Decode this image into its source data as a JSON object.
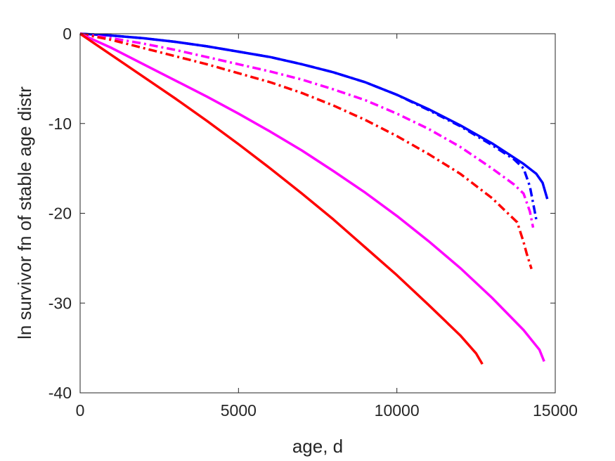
{
  "chart_data": {
    "type": "line",
    "xlabel": "age, d",
    "ylabel": "ln survivor fn of stable age distr",
    "xlim": [
      0,
      15000
    ],
    "ylim": [
      -40,
      0
    ],
    "xticks": [
      0,
      5000,
      10000,
      15000
    ],
    "xtick_labels": [
      "0",
      "5000",
      "10000",
      "15000"
    ],
    "yticks": [
      0,
      -10,
      -20,
      -30,
      -40
    ],
    "ytick_labels": [
      "0",
      "-10",
      "-20",
      "-30",
      "-40"
    ],
    "grid": false,
    "legend": "none",
    "series": [
      {
        "color": "#0000ff",
        "style": "solid",
        "points": [
          [
            0,
            0
          ],
          [
            1000,
            -0.2
          ],
          [
            2000,
            -0.5
          ],
          [
            3000,
            -0.9
          ],
          [
            4000,
            -1.4
          ],
          [
            5000,
            -2.0
          ],
          [
            6000,
            -2.6
          ],
          [
            7000,
            -3.4
          ],
          [
            8000,
            -4.3
          ],
          [
            9000,
            -5.4
          ],
          [
            10000,
            -6.8
          ],
          [
            11000,
            -8.4
          ],
          [
            12000,
            -10.2
          ],
          [
            13000,
            -12.2
          ],
          [
            14000,
            -14.5
          ],
          [
            14400,
            -15.6
          ],
          [
            14600,
            -16.6
          ],
          [
            14750,
            -18.4
          ]
        ]
      },
      {
        "color": "#0000ff",
        "style": "dashdot",
        "points": [
          [
            0,
            0
          ],
          [
            1000,
            -0.2
          ],
          [
            2000,
            -0.5
          ],
          [
            3000,
            -0.9
          ],
          [
            4000,
            -1.4
          ],
          [
            5000,
            -2.0
          ],
          [
            6000,
            -2.6
          ],
          [
            7000,
            -3.4
          ],
          [
            8000,
            -4.3
          ],
          [
            9000,
            -5.4
          ],
          [
            10000,
            -6.8
          ],
          [
            11000,
            -8.5
          ],
          [
            12000,
            -10.3
          ],
          [
            13000,
            -12.4
          ],
          [
            13700,
            -14.0
          ],
          [
            14000,
            -15.0
          ],
          [
            14200,
            -17.0
          ],
          [
            14400,
            -20.7
          ]
        ]
      },
      {
        "color": "#ff00ff",
        "style": "dashdot",
        "points": [
          [
            0,
            0
          ],
          [
            1000,
            -0.5
          ],
          [
            2000,
            -1.1
          ],
          [
            3000,
            -1.8
          ],
          [
            4000,
            -2.6
          ],
          [
            5000,
            -3.4
          ],
          [
            6000,
            -4.2
          ],
          [
            7000,
            -5.1
          ],
          [
            8000,
            -6.2
          ],
          [
            9000,
            -7.4
          ],
          [
            10000,
            -8.9
          ],
          [
            11000,
            -10.6
          ],
          [
            12000,
            -12.6
          ],
          [
            13000,
            -15.0
          ],
          [
            13700,
            -16.8
          ],
          [
            14000,
            -17.8
          ],
          [
            14200,
            -19.8
          ],
          [
            14300,
            -21.6
          ]
        ]
      },
      {
        "color": "#ff0000",
        "style": "dashdot",
        "points": [
          [
            0,
            0
          ],
          [
            1000,
            -0.7
          ],
          [
            2000,
            -1.6
          ],
          [
            3000,
            -2.5
          ],
          [
            4000,
            -3.4
          ],
          [
            5000,
            -4.4
          ],
          [
            6000,
            -5.4
          ],
          [
            7000,
            -6.6
          ],
          [
            8000,
            -8.0
          ],
          [
            9000,
            -9.6
          ],
          [
            10000,
            -11.4
          ],
          [
            11000,
            -13.4
          ],
          [
            12000,
            -15.6
          ],
          [
            13000,
            -18.3
          ],
          [
            13800,
            -21.0
          ],
          [
            14000,
            -23.2
          ],
          [
            14100,
            -24.5
          ],
          [
            14250,
            -26.2
          ]
        ]
      },
      {
        "color": "#ff00ff",
        "style": "solid",
        "points": [
          [
            0,
            0
          ],
          [
            1000,
            -1.6
          ],
          [
            2000,
            -3.4
          ],
          [
            3000,
            -5.2
          ],
          [
            4000,
            -7.0
          ],
          [
            5000,
            -8.9
          ],
          [
            6000,
            -10.9
          ],
          [
            7000,
            -13.0
          ],
          [
            8000,
            -15.3
          ],
          [
            9000,
            -17.7
          ],
          [
            10000,
            -20.3
          ],
          [
            11000,
            -23.1
          ],
          [
            12000,
            -26.1
          ],
          [
            13000,
            -29.4
          ],
          [
            14000,
            -33.0
          ],
          [
            14500,
            -35.2
          ],
          [
            14650,
            -36.5
          ]
        ]
      },
      {
        "color": "#ff0000",
        "style": "solid",
        "points": [
          [
            0,
            0
          ],
          [
            1000,
            -2.4
          ],
          [
            2000,
            -4.8
          ],
          [
            3000,
            -7.2
          ],
          [
            4000,
            -9.7
          ],
          [
            5000,
            -12.3
          ],
          [
            6000,
            -15.0
          ],
          [
            7000,
            -17.8
          ],
          [
            8000,
            -20.7
          ],
          [
            9000,
            -23.8
          ],
          [
            10000,
            -26.9
          ],
          [
            11000,
            -30.2
          ],
          [
            12000,
            -33.6
          ],
          [
            12500,
            -35.6
          ],
          [
            12700,
            -36.8
          ]
        ]
      }
    ]
  }
}
